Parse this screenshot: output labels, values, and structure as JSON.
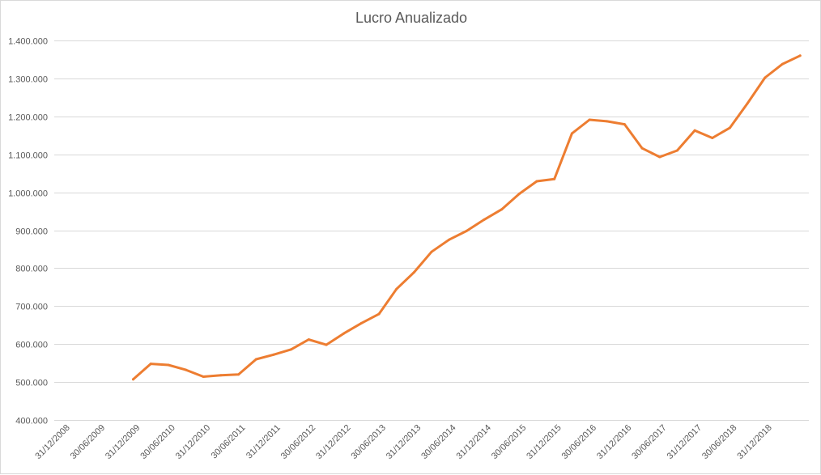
{
  "chart_data": {
    "type": "line",
    "title": "Lucro Anualizado",
    "xlabel": "",
    "ylabel": "",
    "ylim": [
      400000,
      1400000
    ],
    "y_ticks": [
      400000,
      500000,
      600000,
      700000,
      800000,
      900000,
      1000000,
      1100000,
      1200000,
      1300000,
      1400000
    ],
    "y_tick_labels": [
      "400.000",
      "500.000",
      "600.000",
      "700.000",
      "800.000",
      "900.000",
      "1.000.000",
      "1.100.000",
      "1.200.000",
      "1.300.000",
      "1.400.000"
    ],
    "x_tick_labels": [
      "31/12/2008",
      "30/06/2009",
      "31/12/2009",
      "30/06/2010",
      "31/12/2010",
      "30/06/2011",
      "31/12/2011",
      "30/06/2012",
      "31/12/2012",
      "30/06/2013",
      "31/12/2013",
      "30/06/2014",
      "31/12/2014",
      "30/06/2015",
      "31/12/2015",
      "30/06/2016",
      "31/12/2016",
      "30/06/2017",
      "31/12/2017",
      "30/06/2018",
      "31/12/2018"
    ],
    "grid": true,
    "legend": "none",
    "line_color": "#ed7d31",
    "series": [
      {
        "values": [
          null,
          null,
          null,
          null,
          507000,
          548000,
          545000,
          532000,
          514000,
          518000,
          520000,
          560000,
          572000,
          586000,
          612000,
          598000,
          628000,
          655000,
          679000,
          745000,
          789000,
          843000,
          875000,
          898000,
          928000,
          955000,
          996000,
          1029000,
          1035000,
          1155000,
          1191000,
          1187000,
          1179000,
          1116000,
          1093000,
          1110000,
          1163000,
          1143000,
          1170000,
          1234000,
          1302000,
          1338000,
          1360000
        ]
      }
    ]
  }
}
